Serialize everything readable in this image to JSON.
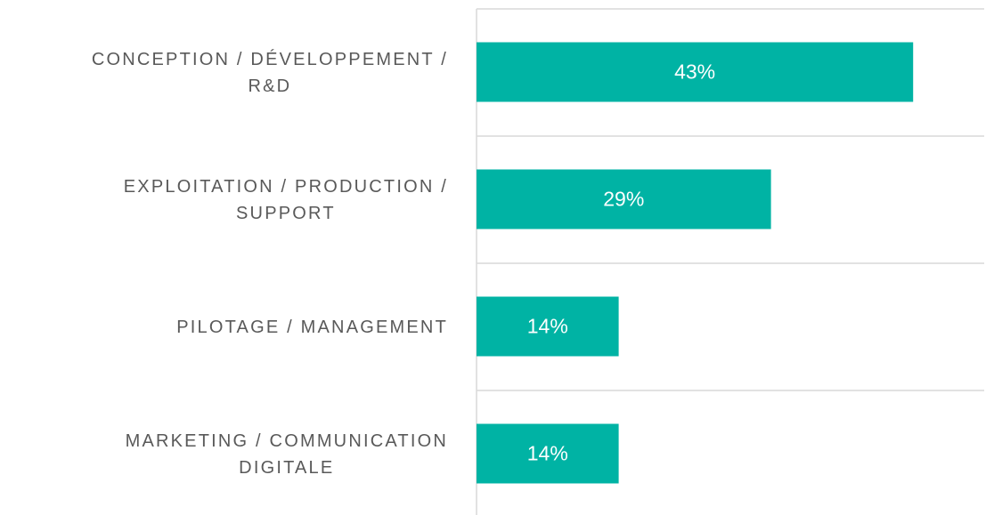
{
  "chart_data": {
    "type": "barh",
    "categories": [
      "CONCEPTION / DÉVELOPPEMENT /\nR&D",
      "EXPLOITATION / PRODUCTION /\nSUPPORT",
      "PILOTAGE / MANAGEMENT",
      "MARKETING / COMMUNICATION\nDIGITALE"
    ],
    "values": [
      43,
      29,
      14,
      14
    ],
    "value_labels": [
      "43%",
      "29%",
      "14%",
      "14%"
    ],
    "color": "#00b3a4",
    "xlim": [
      0,
      50
    ]
  }
}
